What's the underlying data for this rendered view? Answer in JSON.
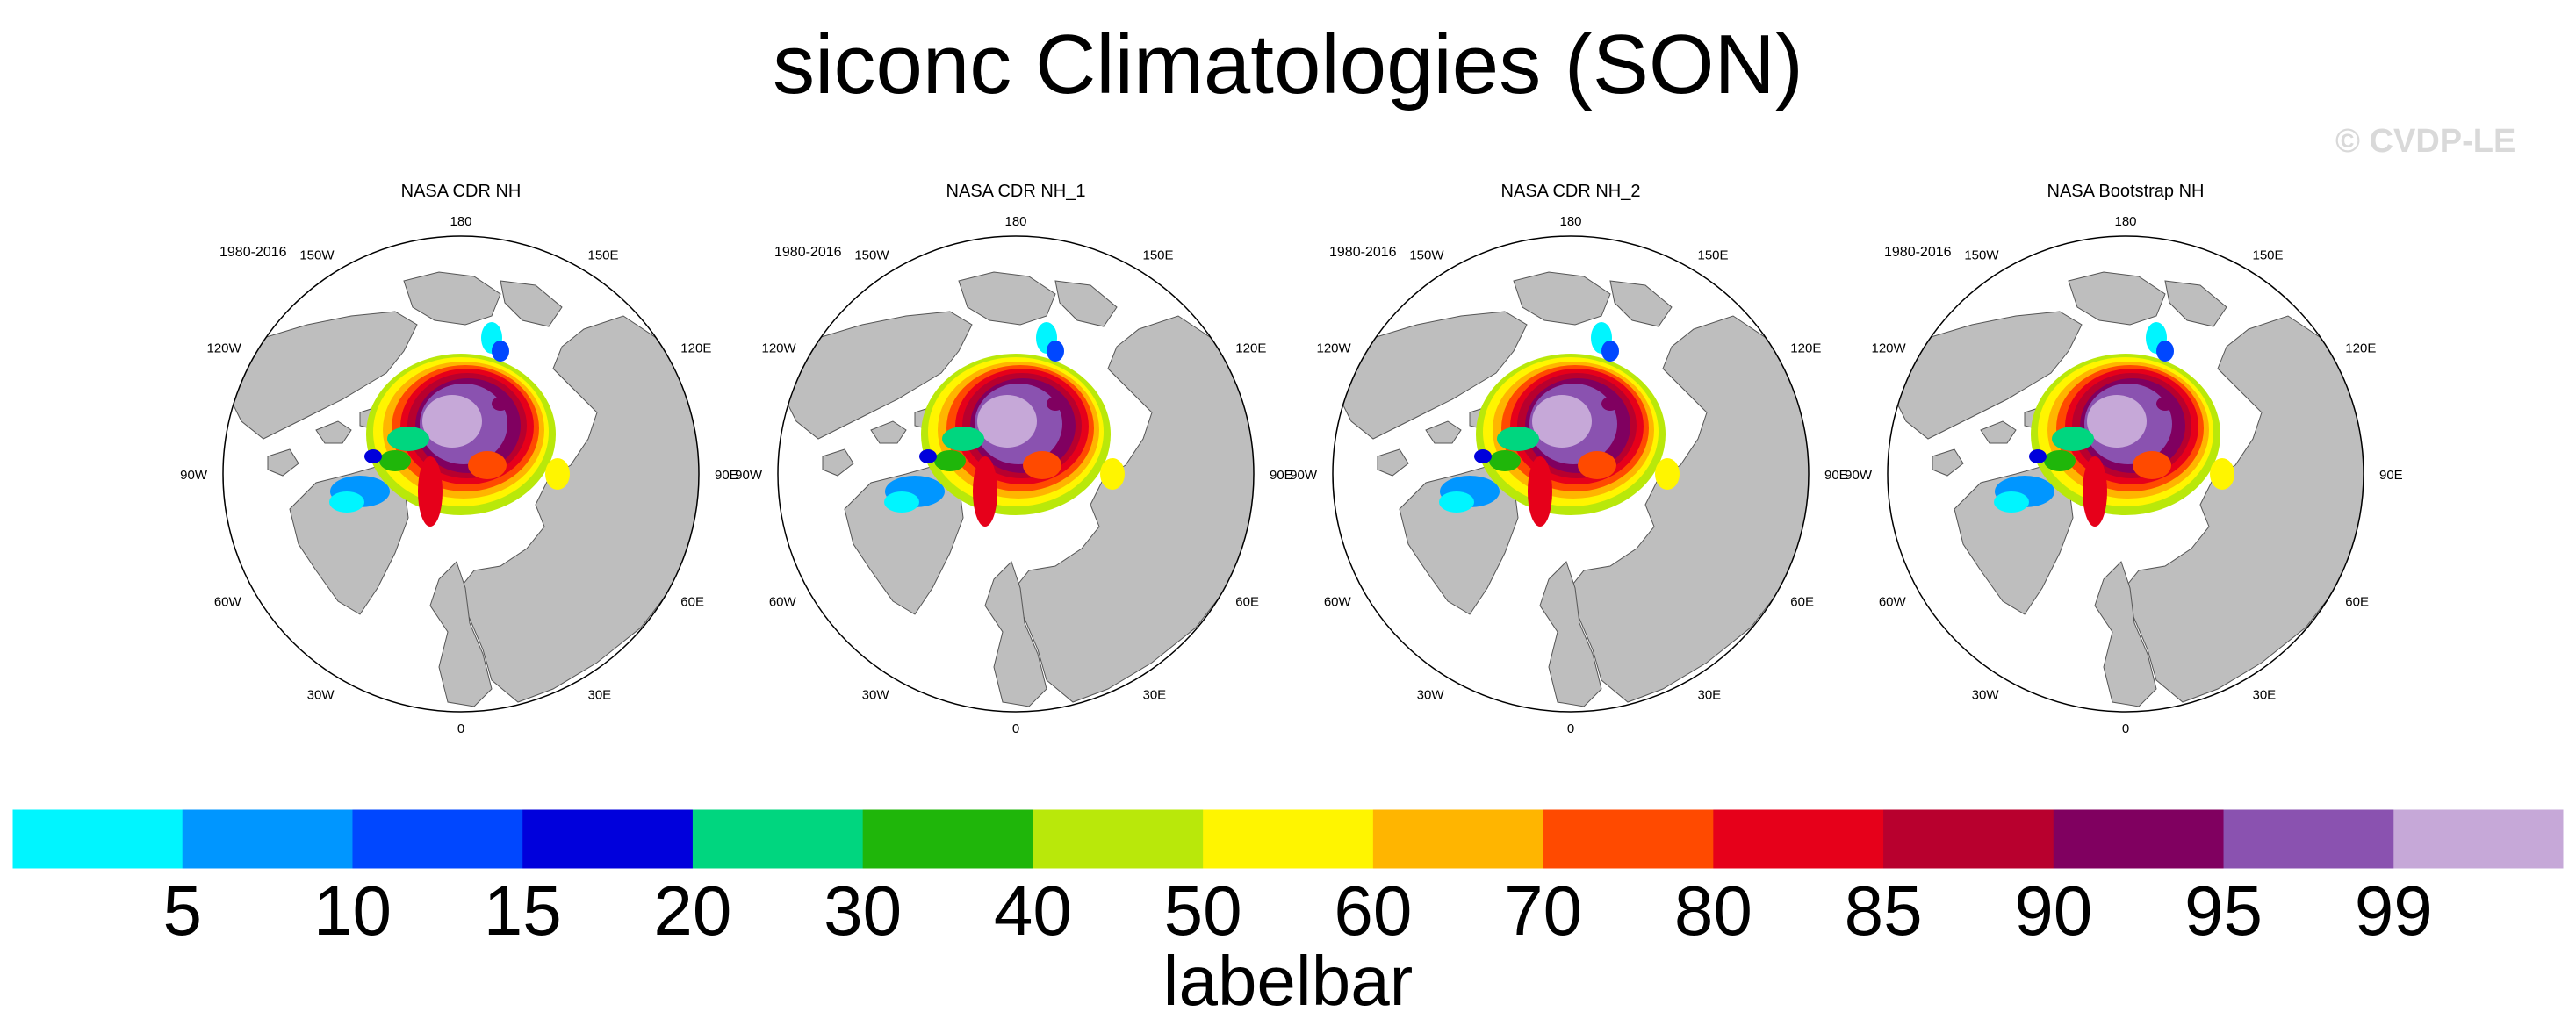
{
  "chart_data": {
    "type": "polar-map",
    "title": "siconc Climatologies (SON)",
    "watermark": "© CVDP-LE",
    "panels": [
      {
        "title": "NASA CDR NH",
        "period": "1980-2016"
      },
      {
        "title": "NASA CDR NH_1",
        "period": "1980-2016"
      },
      {
        "title": "NASA CDR NH_2",
        "period": "1980-2016"
      },
      {
        "title": "NASA Bootstrap NH",
        "period": "1980-2016"
      }
    ],
    "longitude_labels": [
      "180",
      "150E",
      "120E",
      "90E",
      "60E",
      "30E",
      "0",
      "30W",
      "60W",
      "90W",
      "120W",
      "150W"
    ],
    "colorbar": {
      "label": "labelbar",
      "ticks": [
        "5",
        "10",
        "15",
        "20",
        "30",
        "40",
        "50",
        "60",
        "70",
        "80",
        "85",
        "90",
        "95",
        "99"
      ],
      "colors": [
        "#00f5ff",
        "#0096ff",
        "#0047ff",
        "#0000dc",
        "#00d67f",
        "#1fb60a",
        "#b9e80a",
        "#fff500",
        "#ffb500",
        "#ff4a00",
        "#e6001a",
        "#b8002e",
        "#800060",
        "#8a52b0",
        "#c6a8d8"
      ]
    },
    "colors": {
      "land": "#bebebe",
      "ocean": "#ffffff",
      "outline": "#000000"
    }
  }
}
